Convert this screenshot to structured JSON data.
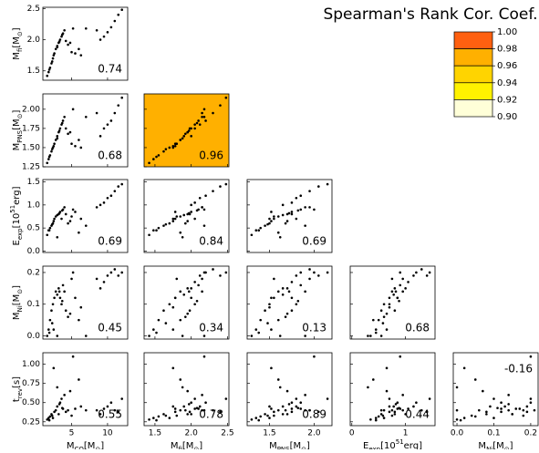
{
  "chart_data": {
    "type": "corner",
    "title": "Spearman's Rank Cor. Coef.",
    "variables": [
      {
        "label": [
          {
            "text": "M"
          },
          {
            "text": "CO",
            "sub": true
          },
          {
            "text": "[M"
          },
          {
            "text": "⊙",
            "sub": true
          },
          {
            "text": "]"
          }
        ],
        "lim": [
          1,
          12.8
        ],
        "xticks": [
          5,
          10
        ],
        "values": [
          1.6,
          1.8,
          2.0,
          2.2,
          2.4,
          2.6,
          2.8,
          3.0,
          3.2,
          3.4,
          3.6,
          3.8,
          4.0,
          2.5,
          3.0,
          4.2,
          4.5,
          5.0,
          5.5,
          6.0,
          6.3,
          5.2,
          7.0,
          8.5,
          9.0,
          9.5,
          10.0,
          10.5,
          11.0,
          11.5,
          12.0,
          1.9,
          2.3,
          3.3,
          3.7,
          4.8
        ]
      },
      {
        "label": [
          {
            "text": "M"
          },
          {
            "text": "fi",
            "sub": true
          },
          {
            "text": "[M"
          },
          {
            "text": "⊙",
            "sub": true
          },
          {
            "text": "]"
          }
        ],
        "lim": [
          1.35,
          2.52
        ],
        "xticks": [
          1.5,
          {
            "value": 2,
            "label": "2.0"
          },
          2.5
        ],
        "yticks": [
          1.5,
          {
            "value": 2,
            "label": "2.0"
          },
          2.5
        ],
        "values": [
          1.42,
          1.48,
          1.55,
          1.62,
          1.7,
          1.78,
          1.85,
          1.9,
          1.95,
          2.0,
          2.05,
          2.1,
          2.15,
          1.75,
          1.88,
          1.98,
          1.92,
          1.8,
          1.78,
          1.85,
          1.75,
          2.18,
          2.18,
          2.15,
          2.0,
          2.05,
          2.12,
          2.2,
          2.3,
          2.4,
          2.48,
          1.52,
          1.65,
          1.97,
          2.08,
          1.95
        ]
      },
      {
        "label": [
          {
            "text": "M"
          },
          {
            "text": "PNS",
            "sub": true
          },
          {
            "text": "[M"
          },
          {
            "text": "⊙",
            "sub": true
          },
          {
            "text": "]"
          }
        ],
        "lim": [
          1.25,
          2.2
        ],
        "xticks": [
          1.5,
          {
            "value": 2,
            "label": "2.0"
          }
        ],
        "yticks": [
          1.25,
          {
            "value": 1.5,
            "label": "1.50"
          },
          1.75,
          {
            "value": 2,
            "label": "2.00"
          }
        ],
        "values": [
          1.3,
          1.35,
          1.4,
          1.45,
          1.5,
          1.55,
          1.6,
          1.65,
          1.7,
          1.75,
          1.8,
          1.85,
          1.9,
          1.52,
          1.62,
          1.75,
          1.68,
          1.55,
          1.52,
          1.6,
          1.5,
          2.0,
          1.9,
          1.95,
          1.65,
          1.75,
          1.8,
          1.85,
          1.95,
          2.05,
          2.15,
          1.38,
          1.48,
          1.72,
          1.82,
          1.7
        ]
      },
      {
        "label": [
          {
            "text": "E"
          },
          {
            "text": "exp",
            "sub": true
          },
          {
            "text": "[10"
          },
          {
            "text": "51",
            "sup": true
          },
          {
            "text": "erg]"
          }
        ],
        "lim": [
          -0.03,
          1.55
        ],
        "xticks": [
          0,
          1
        ],
        "yticks": [
          {
            "value": 0,
            "label": "0.0"
          },
          0.5,
          {
            "value": 1,
            "label": "1.0"
          },
          1.5
        ],
        "values": [
          0.35,
          0.45,
          0.5,
          0.55,
          0.6,
          0.7,
          0.75,
          0.78,
          0.8,
          0.85,
          0.7,
          0.9,
          0.95,
          0.65,
          0.3,
          0.8,
          0.6,
          0.75,
          0.85,
          0.4,
          0.7,
          0.9,
          0.55,
          0.95,
          1.0,
          1.05,
          1.15,
          1.2,
          1.3,
          1.4,
          1.45,
          0.45,
          0.58,
          0.82,
          0.88,
          0.65
        ]
      },
      {
        "label": [
          {
            "text": "M"
          },
          {
            "text": "Ni",
            "sub": true
          },
          {
            "text": "[M"
          },
          {
            "text": "⊙",
            "sub": true
          },
          {
            "text": "]"
          }
        ],
        "lim": [
          -0.01,
          0.22
        ],
        "xticks": [
          {
            "value": 0,
            "label": "0.0"
          },
          0.1,
          0.2
        ],
        "yticks": [
          {
            "value": 0,
            "label": "0.0"
          },
          0.1,
          0.2
        ],
        "values": [
          0.0,
          0.02,
          0.05,
          0.08,
          0.1,
          0.12,
          0.14,
          0.13,
          0.15,
          0.12,
          0.1,
          0.16,
          0.14,
          0.02,
          0.0,
          0.08,
          0.06,
          0.18,
          0.12,
          0.05,
          0.09,
          0.2,
          0.0,
          0.18,
          0.15,
          0.17,
          0.19,
          0.2,
          0.21,
          0.19,
          0.2,
          0.01,
          0.04,
          0.14,
          0.11,
          0.07
        ]
      },
      {
        "label": [
          {
            "text": "t"
          },
          {
            "text": "rev",
            "sub": true
          },
          {
            "text": "[s]"
          }
        ],
        "lim": [
          0.2,
          1.15
        ],
        "yticks": [
          0.25,
          {
            "value": 0.5,
            "label": "0.50"
          },
          0.75,
          {
            "value": 1,
            "label": "1.00"
          }
        ],
        "values": [
          0.28,
          0.3,
          0.32,
          0.35,
          0.3,
          0.38,
          0.4,
          0.45,
          0.35,
          0.5,
          0.55,
          0.42,
          0.6,
          0.95,
          0.7,
          0.38,
          0.4,
          0.33,
          0.42,
          0.8,
          0.45,
          1.1,
          0.4,
          0.4,
          0.35,
          0.42,
          0.45,
          0.5,
          0.4,
          0.38,
          0.55,
          0.27,
          0.33,
          0.48,
          0.43,
          0.65
        ]
      }
    ],
    "coefficients": [
      [
        0.74
      ],
      [
        0.68,
        0.96
      ],
      [
        0.69,
        0.84,
        0.69
      ],
      [
        0.45,
        0.34,
        0.13,
        0.68
      ],
      [
        0.55,
        0.78,
        0.89,
        0.44,
        -0.16
      ]
    ],
    "colorbar": {
      "ticks": [
        {
          "value": 1,
          "label": "1.00"
        },
        0.98,
        0.96,
        0.94,
        0.92,
        {
          "value": 0.9,
          "label": "0.90"
        }
      ],
      "colors": [
        "#ff6010",
        "#ffb000",
        "#ffd400",
        "#fff200",
        "#ffffd8"
      ]
    }
  }
}
